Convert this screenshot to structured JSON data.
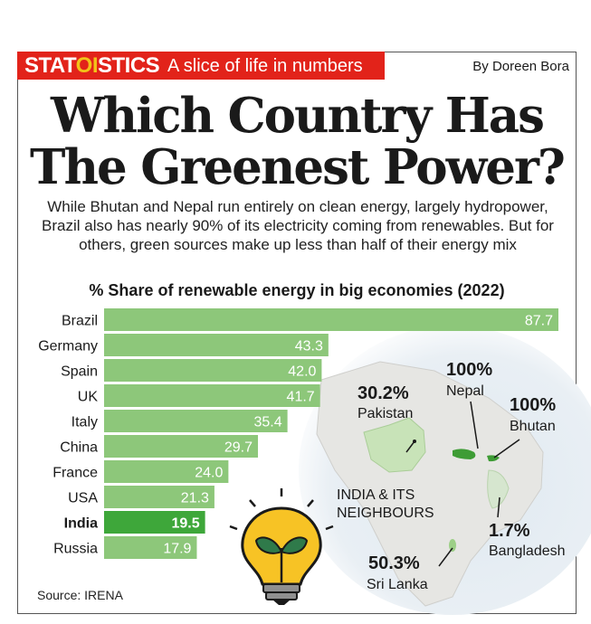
{
  "header": {
    "brand_pre": "STAT",
    "brand_mid": "OI",
    "brand_post": "STICS",
    "tagline": "A slice of life in numbers",
    "byline": "By Doreen Bora"
  },
  "headline": {
    "line1": "Which Country Has",
    "line2": "The Greenest Power?"
  },
  "standfirst": "While Bhutan and Nepal run entirely on clean energy, largely hydropower, Brazil also has nearly 90% of its electricity coming from renewables. But for others, green sources make up less than half of their energy mix",
  "chart_data": {
    "type": "bar",
    "orientation": "horizontal",
    "title": "% Share of renewable energy in big economies (2022)",
    "categories": [
      "Brazil",
      "Germany",
      "Spain",
      "UK",
      "Italy",
      "China",
      "France",
      "USA",
      "India",
      "Russia"
    ],
    "labels": [
      "87.7",
      "43.3",
      "42.0",
      "41.7",
      "35.4",
      "29.7",
      "24.0",
      "21.3",
      "19.5",
      "17.9"
    ],
    "values": [
      87.7,
      43.3,
      42.0,
      41.7,
      35.4,
      29.7,
      24.0,
      21.3,
      19.5,
      17.9
    ],
    "highlight": "India",
    "xlim": [
      0,
      87.7
    ],
    "colors": {
      "bar": "#8dc77a",
      "highlight": "#3ea73a",
      "label": "#ffffff"
    }
  },
  "map": {
    "title": "INDIA & ITS NEIGHBOURS",
    "callouts": [
      {
        "value": "30.2%",
        "name": "Pakistan"
      },
      {
        "value": "100%",
        "name": "Nepal"
      },
      {
        "value": "100%",
        "name": "Bhutan"
      },
      {
        "value": "1.7%",
        "name": "Bangladesh"
      },
      {
        "value": "50.3%",
        "name": "Sri Lanka"
      }
    ]
  },
  "illustration": {
    "icon": "lightbulb-with-leaves-icon"
  },
  "source": "Source: IRENA"
}
